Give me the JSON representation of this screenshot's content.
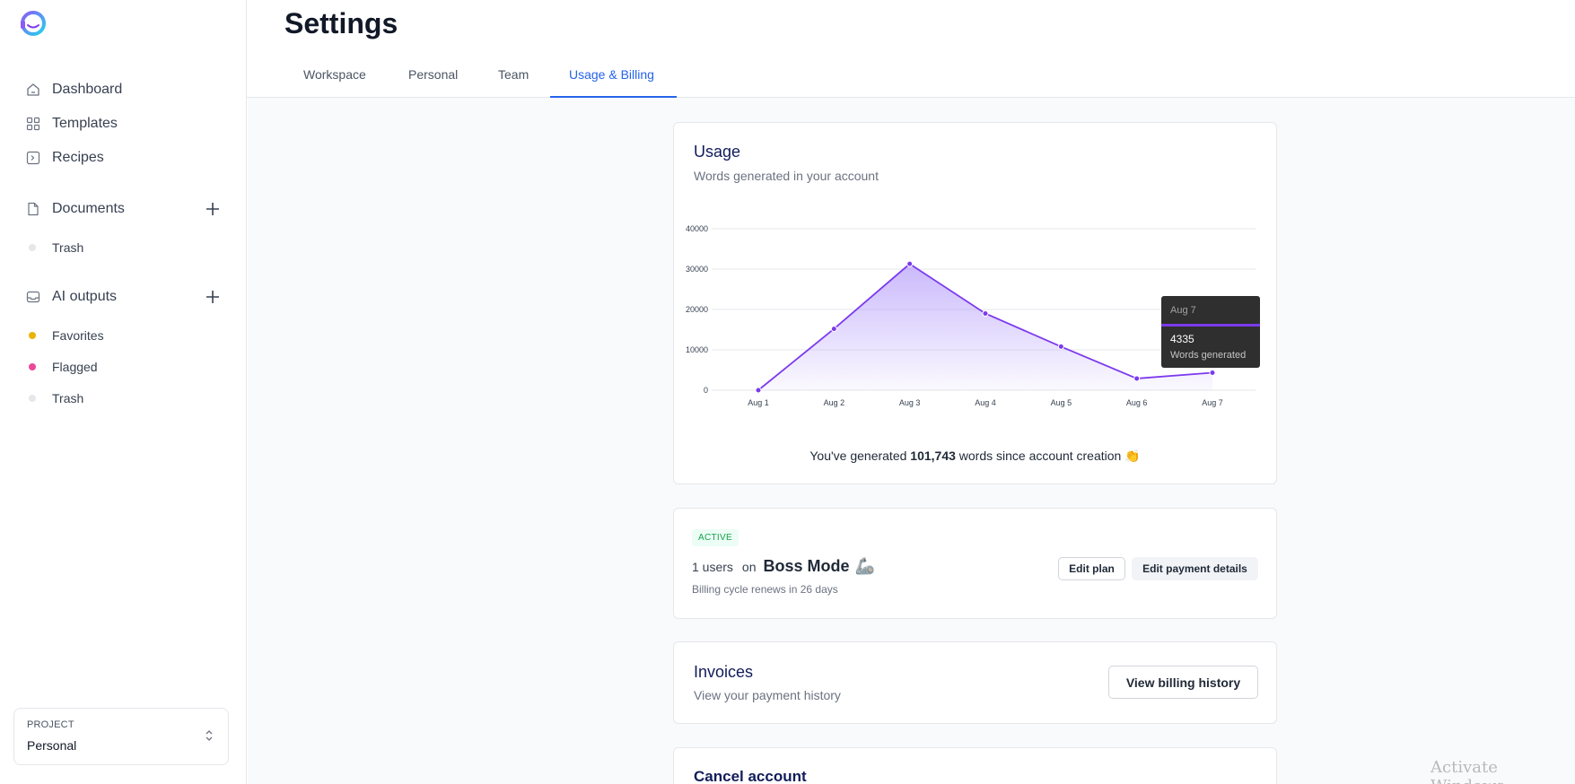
{
  "sidebar": {
    "nav": [
      {
        "label": "Dashboard",
        "icon": "home-icon"
      },
      {
        "label": "Templates",
        "icon": "grid-icon"
      },
      {
        "label": "Recipes",
        "icon": "terminal-icon"
      }
    ],
    "documents": {
      "label": "Documents",
      "items": [
        {
          "label": "Trash",
          "color": "#e5e7eb"
        }
      ]
    },
    "ai_outputs": {
      "label": "AI outputs",
      "items": [
        {
          "label": "Favorites",
          "color": "#eab308"
        },
        {
          "label": "Flagged",
          "color": "#ec4899"
        },
        {
          "label": "Trash",
          "color": "#e5e7eb"
        }
      ]
    },
    "project": {
      "caption": "PROJECT",
      "value": "Personal"
    }
  },
  "header": {
    "title": "Settings",
    "tabs": [
      {
        "label": "Workspace"
      },
      {
        "label": "Personal"
      },
      {
        "label": "Team"
      },
      {
        "label": "Usage & Billing",
        "active": true
      }
    ]
  },
  "usage": {
    "title": "Usage",
    "subtitle": "Words generated in your account",
    "summary_prefix": "You've generated ",
    "summary_value": "101,743",
    "summary_suffix": " words since account creation 👏",
    "tooltip": {
      "date": "Aug 7",
      "value": "4335",
      "label": "Words generated"
    }
  },
  "chart_data": {
    "type": "area",
    "categories": [
      "Aug 1",
      "Aug 2",
      "Aug 3",
      "Aug 4",
      "Aug 5",
      "Aug 6",
      "Aug 7"
    ],
    "series": [
      {
        "values": [
          0,
          15200,
          31300,
          19000,
          10800,
          2900,
          4335
        ]
      }
    ],
    "ylim": [
      0,
      40000
    ],
    "yticks": [
      0,
      10000,
      20000,
      30000,
      40000
    ],
    "grid": true,
    "colors": {
      "line": "#7c3aed",
      "fill": "#a78bfa"
    }
  },
  "plan": {
    "status": "ACTIVE",
    "users": "1 users",
    "on": "on",
    "name": "Boss Mode",
    "emoji": "🦾",
    "renewal": "Billing cycle renews in 26 days",
    "edit_plan": "Edit plan",
    "edit_payment": "Edit payment details"
  },
  "invoices": {
    "title": "Invoices",
    "subtitle": "View your payment history",
    "button": "View billing history"
  },
  "cancel": {
    "title": "Cancel account"
  },
  "watermark": "Activate Windows",
  "colors": {
    "accent": "#2563eb",
    "brand": "#7c3aed"
  }
}
